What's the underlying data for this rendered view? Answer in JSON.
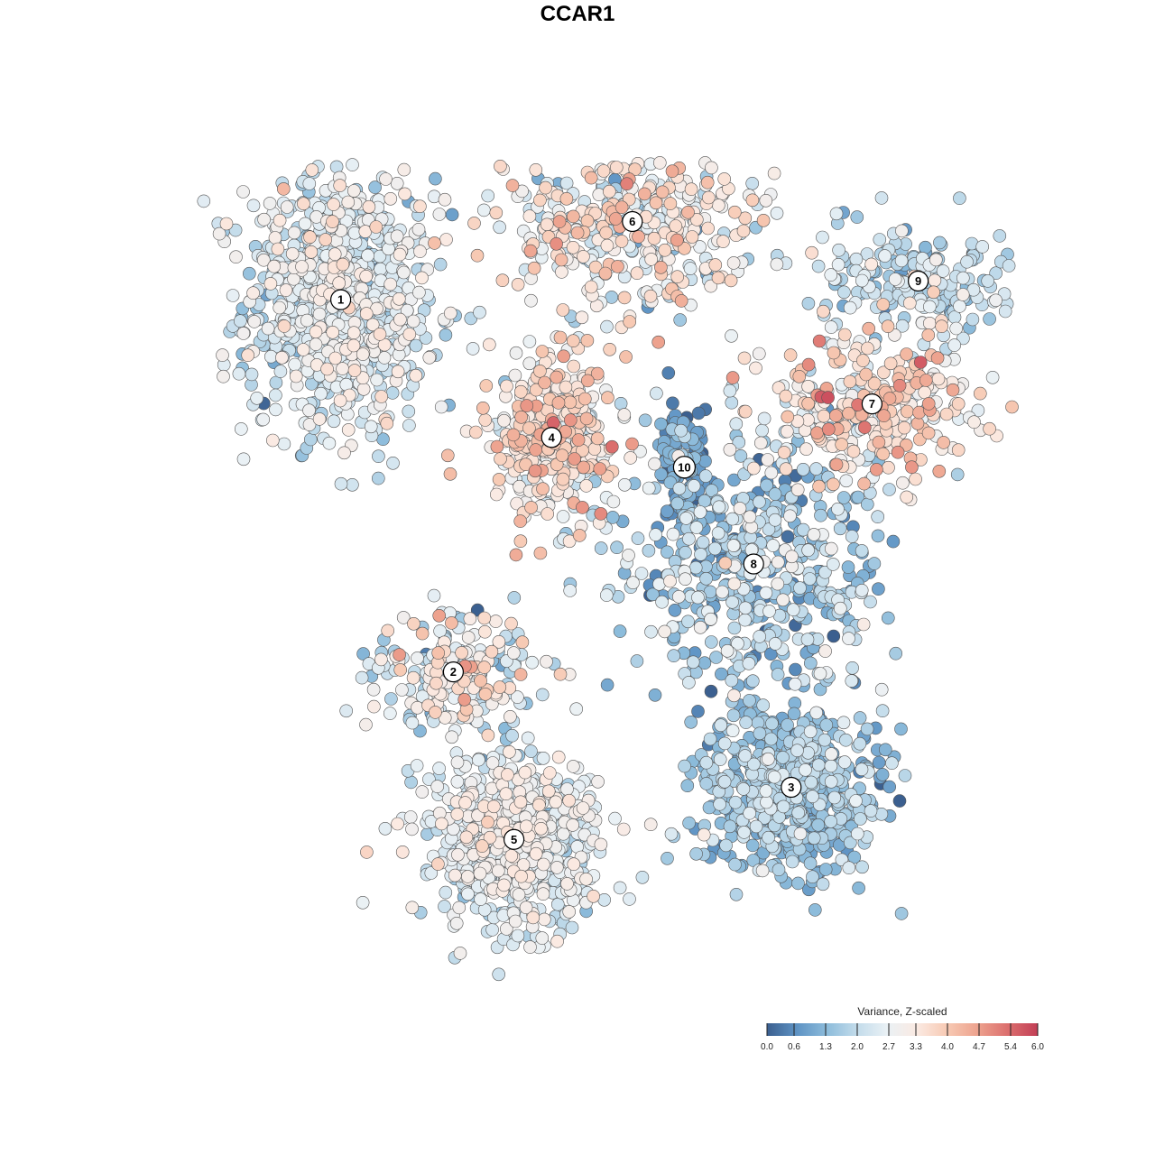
{
  "chart_data": {
    "type": "scatter",
    "title": "CCAR1",
    "xlabel": "",
    "ylabel": "",
    "grid": false,
    "axes_visible": false,
    "legend_placement": "bottom-right",
    "colorbar": {
      "title": "Variance, Z-scaled",
      "range": [
        0.0,
        6.0
      ],
      "tick_labels": [
        "0.0",
        "0.6",
        "1.3",
        "2.0",
        "2.7",
        "3.3",
        "4.0",
        "4.7",
        "5.4",
        "6.0"
      ],
      "tick_values": [
        0.0,
        0.6,
        1.3,
        2.0,
        2.7,
        3.3,
        4.0,
        4.7,
        5.4,
        6.0
      ],
      "colors": [
        "#3b5f8f",
        "#5e93c4",
        "#8dbcdb",
        "#c3dceb",
        "#eaf1f5",
        "#fbeae2",
        "#f7c9b3",
        "#eda28e",
        "#dc6f6e",
        "#c23e56"
      ]
    },
    "clusters": [
      {
        "label": "1",
        "x": -8.2,
        "y": 7.1,
        "n": 900,
        "sx": 1.65,
        "sy": 1.8,
        "mean": 2.4,
        "sd": 0.55
      },
      {
        "label": "2",
        "x": -4.3,
        "y": -2.9,
        "n": 220,
        "sx": 1.4,
        "sy": 0.8,
        "mean": 2.6,
        "sd": 0.9
      },
      {
        "label": "3",
        "x": 7.4,
        "y": -6.0,
        "n": 650,
        "sx": 1.6,
        "sy": 1.1,
        "mean": 1.45,
        "sd": 0.5
      },
      {
        "label": "4",
        "x": -0.9,
        "y": 3.4,
        "n": 380,
        "sx": 1.05,
        "sy": 1.05,
        "mean": 3.25,
        "sd": 0.75
      },
      {
        "label": "5",
        "x": -2.2,
        "y": -7.4,
        "n": 700,
        "sx": 1.45,
        "sy": 1.15,
        "mean": 2.55,
        "sd": 0.45
      },
      {
        "label": "6",
        "x": 1.9,
        "y": 9.2,
        "n": 420,
        "sx": 2.3,
        "sy": 1.3,
        "mean": 3.05,
        "sd": 0.8
      },
      {
        "label": "7",
        "x": 10.2,
        "y": 4.3,
        "n": 300,
        "sx": 2.0,
        "sy": 0.9,
        "mean": 3.4,
        "sd": 0.8
      },
      {
        "label": "8",
        "x": 6.1,
        "y": 0.0,
        "n": 500,
        "sx": 2.3,
        "sy": 1.8,
        "mean": 1.7,
        "sd": 0.8
      },
      {
        "label": "9",
        "x": 11.8,
        "y": 7.6,
        "n": 200,
        "sx": 1.7,
        "sy": 0.7,
        "mean": 2.0,
        "sd": 0.5
      },
      {
        "label": "10",
        "x": 3.7,
        "y": 2.6,
        "n": 130,
        "sx": 0.45,
        "sy": 0.8,
        "mean": 0.8,
        "sd": 0.45
      }
    ],
    "extent": {
      "x": [
        -15,
        15
      ],
      "y": [
        -12,
        12
      ]
    }
  }
}
